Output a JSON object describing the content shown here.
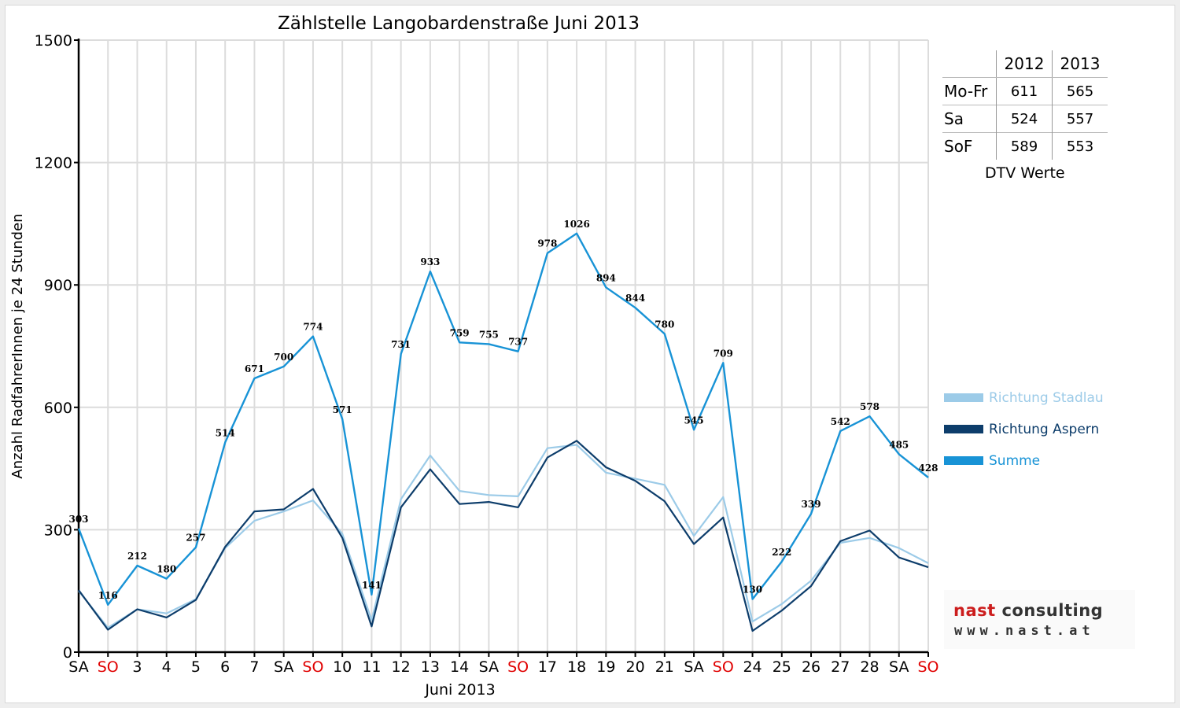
{
  "chart_data": {
    "type": "line",
    "title": "Zählstelle Langobardenstraße Juni 2013",
    "xlabel": "Juni 2013",
    "ylabel": "Anzahl RadfahrerInnen je 24 Stunden",
    "ylim": [
      0,
      1500
    ],
    "yticks": [
      "0",
      "300",
      "600",
      "900",
      "1200",
      "1500"
    ],
    "grid": true,
    "legend_position": "right",
    "categories": [
      "SA",
      "SO",
      "3",
      "4",
      "5",
      "6",
      "7",
      "SA",
      "SO",
      "10",
      "11",
      "12",
      "13",
      "14",
      "SA",
      "SO",
      "17",
      "18",
      "19",
      "20",
      "21",
      "SA",
      "SO",
      "24",
      "25",
      "26",
      "27",
      "28",
      "SA",
      "SO"
    ],
    "weekend_color": "#e00000",
    "series": [
      {
        "name": "Richtung Stadlau",
        "color": "#9ccbe8",
        "values": [
          150,
          60,
          105,
          95,
          130,
          255,
          322,
          345,
          372,
          290,
          78,
          375,
          482,
          395,
          385,
          382,
          500,
          508,
          440,
          425,
          410,
          285,
          380,
          75,
          118,
          175,
          268,
          280,
          255,
          218
        ]
      },
      {
        "name": "Richtung Aspern",
        "color": "#0d3d6b",
        "values": [
          152,
          55,
          105,
          85,
          128,
          258,
          345,
          350,
          400,
          280,
          63,
          355,
          448,
          363,
          368,
          355,
          477,
          518,
          453,
          420,
          370,
          265,
          330,
          52,
          102,
          162,
          272,
          298,
          232,
          208
        ]
      },
      {
        "name": "Summe",
        "color": "#1893d6",
        "values": [
          303,
          116,
          212,
          180,
          257,
          514,
          671,
          700,
          774,
          571,
          141,
          731,
          933,
          759,
          755,
          737,
          978,
          1026,
          894,
          844,
          780,
          545,
          709,
          130,
          222,
          339,
          542,
          578,
          485,
          428
        ],
        "labels": [
          "303",
          "116",
          "212",
          "180",
          "257",
          "514",
          "671",
          "700",
          "774",
          "571",
          "141",
          "731",
          "933",
          "759",
          "755",
          "737",
          "978",
          "1026",
          "894",
          "844",
          "780",
          "545",
          "709",
          "130",
          "222",
          "339",
          "542",
          "578",
          "485",
          "428"
        ]
      }
    ]
  },
  "dtv_table": {
    "header": [
      "2012",
      "2013"
    ],
    "rows": [
      {
        "label": "Mo-Fr",
        "v2012": "611",
        "v2013": "565"
      },
      {
        "label": "Sa",
        "v2012": "524",
        "v2013": "557"
      },
      {
        "label": "SoF",
        "v2012": "589",
        "v2013": "553"
      }
    ],
    "caption": "DTV Werte"
  },
  "logo": {
    "name_part1": "nast",
    "name_part2": " consulting",
    "url": "www.nast.at"
  }
}
